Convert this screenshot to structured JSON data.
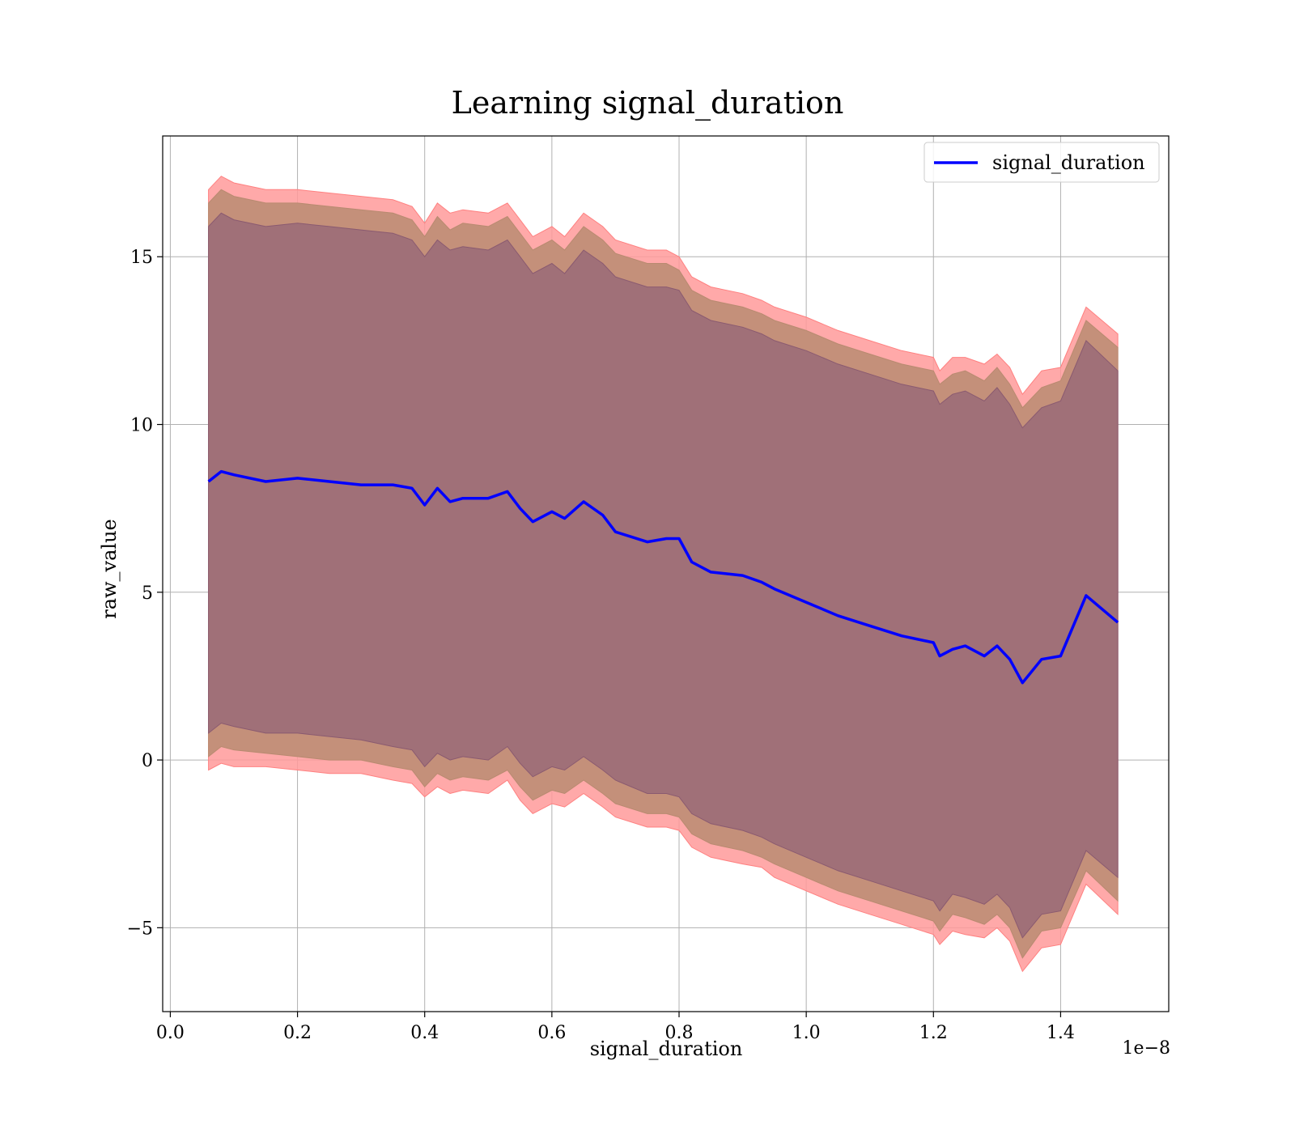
{
  "chart_data": {
    "type": "line",
    "title": "Learning signal_duration",
    "xlabel": "signal_duration",
    "ylabel": "raw_value",
    "x_offset_label": "1e−8",
    "xlim": [
      -0.012,
      1.57
    ],
    "ylim": [
      -7.5,
      18.6
    ],
    "xticks": [
      0.0,
      0.2,
      0.4,
      0.6,
      0.8,
      1.0,
      1.2,
      1.4
    ],
    "xtick_labels": [
      "0.0",
      "0.2",
      "0.4",
      "0.6",
      "0.8",
      "1.0",
      "1.2",
      "1.4"
    ],
    "yticks": [
      -5,
      0,
      5,
      10,
      15
    ],
    "ytick_labels": [
      "−5",
      "0",
      "5",
      "10",
      "15"
    ],
    "grid": true,
    "legend_position": "top-right",
    "colors": {
      "line": "#0000ff",
      "band_outer": "#ff9a9a",
      "band_mid": "#c4907a",
      "band_inner": "#a07078"
    },
    "series": [
      {
        "name": "signal_duration",
        "x": [
          0.06,
          0.08,
          0.1,
          0.15,
          0.2,
          0.25,
          0.3,
          0.35,
          0.38,
          0.4,
          0.42,
          0.44,
          0.46,
          0.5,
          0.53,
          0.55,
          0.57,
          0.6,
          0.62,
          0.65,
          0.68,
          0.7,
          0.75,
          0.78,
          0.8,
          0.82,
          0.85,
          0.9,
          0.93,
          0.95,
          1.0,
          1.05,
          1.1,
          1.15,
          1.2,
          1.21,
          1.23,
          1.25,
          1.28,
          1.3,
          1.32,
          1.34,
          1.37,
          1.4,
          1.44,
          1.49
        ],
        "y": [
          8.3,
          8.6,
          8.5,
          8.3,
          8.4,
          8.3,
          8.2,
          8.2,
          8.1,
          7.6,
          8.1,
          7.7,
          7.8,
          7.8,
          8.0,
          7.5,
          7.1,
          7.4,
          7.2,
          7.7,
          7.3,
          6.8,
          6.5,
          6.6,
          6.6,
          5.9,
          5.6,
          5.5,
          5.3,
          5.1,
          4.7,
          4.3,
          4.0,
          3.7,
          3.5,
          3.1,
          3.3,
          3.4,
          3.1,
          3.4,
          3.0,
          2.3,
          3.0,
          3.1,
          4.9,
          4.1
        ]
      }
    ],
    "bands": [
      {
        "x": [
          0.06,
          0.08,
          0.1,
          0.15,
          0.2,
          0.25,
          0.3,
          0.35,
          0.38,
          0.4,
          0.42,
          0.44,
          0.46,
          0.5,
          0.53,
          0.55,
          0.57,
          0.6,
          0.62,
          0.65,
          0.68,
          0.7,
          0.75,
          0.78,
          0.8,
          0.82,
          0.85,
          0.9,
          0.93,
          0.95,
          1.0,
          1.05,
          1.1,
          1.15,
          1.2,
          1.21,
          1.23,
          1.25,
          1.28,
          1.3,
          1.32,
          1.34,
          1.37,
          1.4,
          1.44,
          1.49
        ],
        "lower_outer": [
          -0.3,
          -0.1,
          -0.2,
          -0.2,
          -0.3,
          -0.4,
          -0.4,
          -0.6,
          -0.7,
          -1.1,
          -0.8,
          -1.0,
          -0.9,
          -1.0,
          -0.6,
          -1.2,
          -1.6,
          -1.3,
          -1.4,
          -1.0,
          -1.4,
          -1.7,
          -2.0,
          -2.0,
          -2.1,
          -2.6,
          -2.9,
          -3.1,
          -3.2,
          -3.5,
          -3.9,
          -4.3,
          -4.6,
          -4.9,
          -5.2,
          -5.5,
          -5.1,
          -5.2,
          -5.3,
          -5.0,
          -5.4,
          -6.3,
          -5.6,
          -5.5,
          -3.7,
          -4.6
        ],
        "upper_outer": [
          17.0,
          17.4,
          17.2,
          17.0,
          17.0,
          16.9,
          16.8,
          16.7,
          16.5,
          16.0,
          16.6,
          16.3,
          16.4,
          16.3,
          16.6,
          16.1,
          15.6,
          15.9,
          15.6,
          16.3,
          15.9,
          15.5,
          15.2,
          15.2,
          15.0,
          14.4,
          14.1,
          13.9,
          13.7,
          13.5,
          13.2,
          12.8,
          12.5,
          12.2,
          12.0,
          11.6,
          12.0,
          12.0,
          11.8,
          12.1,
          11.7,
          10.9,
          11.6,
          11.7,
          13.5,
          12.7
        ],
        "lower_mid": [
          0.1,
          0.4,
          0.3,
          0.2,
          0.1,
          0.0,
          0.0,
          -0.2,
          -0.3,
          -0.8,
          -0.4,
          -0.6,
          -0.5,
          -0.6,
          -0.3,
          -0.8,
          -1.2,
          -0.9,
          -1.0,
          -0.6,
          -1.0,
          -1.3,
          -1.6,
          -1.6,
          -1.7,
          -2.2,
          -2.5,
          -2.7,
          -2.9,
          -3.1,
          -3.5,
          -3.9,
          -4.2,
          -4.5,
          -4.8,
          -5.1,
          -4.6,
          -4.7,
          -4.9,
          -4.6,
          -5.0,
          -5.9,
          -5.1,
          -5.0,
          -3.3,
          -4.2
        ],
        "upper_mid": [
          16.6,
          17.0,
          16.8,
          16.6,
          16.6,
          16.5,
          16.4,
          16.3,
          16.1,
          15.6,
          16.2,
          15.8,
          16.0,
          15.9,
          16.2,
          15.7,
          15.2,
          15.5,
          15.2,
          15.9,
          15.5,
          15.1,
          14.8,
          14.8,
          14.6,
          14.0,
          13.7,
          13.5,
          13.3,
          13.1,
          12.8,
          12.4,
          12.1,
          11.8,
          11.6,
          11.2,
          11.5,
          11.6,
          11.3,
          11.7,
          11.2,
          10.5,
          11.1,
          11.3,
          13.1,
          12.3
        ],
        "lower_inner": [
          0.8,
          1.1,
          1.0,
          0.8,
          0.8,
          0.7,
          0.6,
          0.4,
          0.3,
          -0.2,
          0.2,
          0.0,
          0.1,
          0.0,
          0.4,
          -0.1,
          -0.5,
          -0.2,
          -0.3,
          0.1,
          -0.3,
          -0.6,
          -1.0,
          -1.0,
          -1.1,
          -1.6,
          -1.9,
          -2.1,
          -2.3,
          -2.5,
          -2.9,
          -3.3,
          -3.6,
          -3.9,
          -4.2,
          -4.5,
          -4.0,
          -4.1,
          -4.3,
          -4.0,
          -4.4,
          -5.3,
          -4.6,
          -4.5,
          -2.7,
          -3.5
        ],
        "upper_inner": [
          15.9,
          16.3,
          16.1,
          15.9,
          16.0,
          15.9,
          15.8,
          15.7,
          15.5,
          15.0,
          15.5,
          15.2,
          15.3,
          15.2,
          15.5,
          15.0,
          14.5,
          14.8,
          14.5,
          15.2,
          14.8,
          14.4,
          14.1,
          14.1,
          14.0,
          13.4,
          13.1,
          12.9,
          12.7,
          12.5,
          12.2,
          11.8,
          11.5,
          11.2,
          11.0,
          10.6,
          10.9,
          11.0,
          10.7,
          11.1,
          10.6,
          9.9,
          10.5,
          10.7,
          12.5,
          11.6
        ]
      }
    ]
  }
}
